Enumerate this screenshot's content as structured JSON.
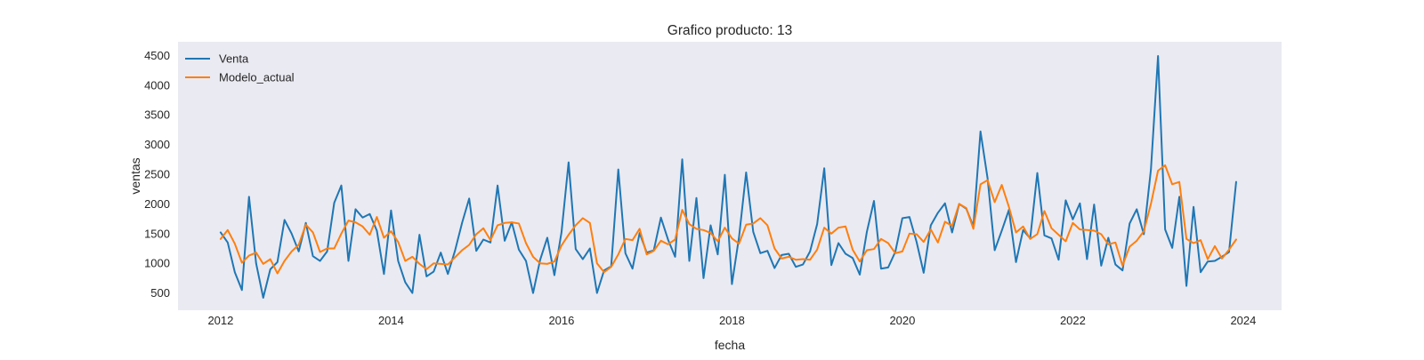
{
  "chart_data": {
    "type": "line",
    "title": "Grafico producto: 13",
    "xlabel": "fecha",
    "ylabel": "ventas",
    "x_start": "2012-01",
    "x_end": "2023-12",
    "x_frequency": "monthly",
    "xlim": [
      2011.5,
      2024.45
    ],
    "ylim": [
      210,
      4730
    ],
    "xticks": [
      "2012",
      "2014",
      "2016",
      "2018",
      "2020",
      "2022",
      "2024"
    ],
    "yticks": [
      500,
      1000,
      1500,
      2000,
      2500,
      3000,
      3500,
      4000,
      4500
    ],
    "grid": false,
    "legend_position": "top-left",
    "series": [
      {
        "name": "Venta",
        "color": "#1f77b4",
        "values": [
          1520,
          1350,
          850,
          550,
          2120,
          1000,
          420,
          900,
          1020,
          1730,
          1500,
          1200,
          1680,
          1120,
          1040,
          1200,
          2020,
          2310,
          1040,
          1910,
          1770,
          1830,
          1550,
          820,
          1890,
          1040,
          680,
          500,
          1480,
          780,
          860,
          1180,
          820,
          1210,
          1680,
          2090,
          1210,
          1400,
          1350,
          2310,
          1380,
          1690,
          1230,
          1040,
          500,
          1060,
          1430,
          800,
          1520,
          2700,
          1240,
          1070,
          1250,
          500,
          880,
          950,
          2580,
          1170,
          910,
          1510,
          1180,
          1220,
          1770,
          1400,
          1110,
          2750,
          1040,
          2100,
          750,
          1640,
          1150,
          2490,
          650,
          1440,
          2530,
          1530,
          1170,
          1210,
          920,
          1140,
          1160,
          940,
          980,
          1200,
          1660,
          2600,
          970,
          1340,
          1160,
          1090,
          810,
          1530,
          2050,
          910,
          930,
          1190,
          1760,
          1780,
          1360,
          840,
          1640,
          1850,
          2010,
          1520,
          2000,
          1920,
          1620,
          3220,
          2430,
          1220,
          1550,
          1900,
          1020,
          1560,
          1420,
          2520,
          1470,
          1420,
          1060,
          2060,
          1740,
          2010,
          1070,
          1990,
          960,
          1430,
          980,
          880,
          1670,
          1910,
          1490,
          2580,
          4490,
          1570,
          1260,
          2120,
          620,
          1950,
          850,
          1030,
          1040,
          1110,
          1190,
          2370
        ]
      },
      {
        "name": "Modelo_actual",
        "color": "#ff7f0e",
        "values": [
          1410,
          1560,
          1330,
          1010,
          1130,
          1180,
          990,
          1070,
          830,
          1040,
          1200,
          1310,
          1650,
          1520,
          1190,
          1250,
          1250,
          1500,
          1720,
          1690,
          1620,
          1480,
          1780,
          1430,
          1540,
          1360,
          1040,
          1110,
          990,
          900,
          1000,
          990,
          980,
          1100,
          1220,
          1310,
          1490,
          1590,
          1390,
          1640,
          1680,
          1690,
          1670,
          1340,
          1110,
          1000,
          990,
          1030,
          1300,
          1480,
          1640,
          1760,
          1680,
          1000,
          850,
          940,
          1150,
          1410,
          1390,
          1580,
          1150,
          1210,
          1380,
          1320,
          1400,
          1900,
          1660,
          1580,
          1560,
          1510,
          1370,
          1600,
          1420,
          1330,
          1650,
          1670,
          1760,
          1640,
          1250,
          1080,
          1110,
          1060,
          1070,
          1060,
          1230,
          1600,
          1500,
          1600,
          1620,
          1230,
          1030,
          1220,
          1240,
          1410,
          1340,
          1170,
          1200,
          1500,
          1490,
          1360,
          1570,
          1350,
          1700,
          1630,
          2000,
          1930,
          1580,
          2330,
          2400,
          2030,
          2320,
          1950,
          1520,
          1620,
          1410,
          1490,
          1880,
          1590,
          1480,
          1370,
          1680,
          1570,
          1560,
          1550,
          1490,
          1320,
          1350,
          960,
          1280,
          1380,
          1540,
          2000,
          2560,
          2650,
          2330,
          2370,
          1410,
          1340,
          1390,
          1070,
          1290,
          1080,
          1230,
          1400
        ]
      }
    ]
  }
}
